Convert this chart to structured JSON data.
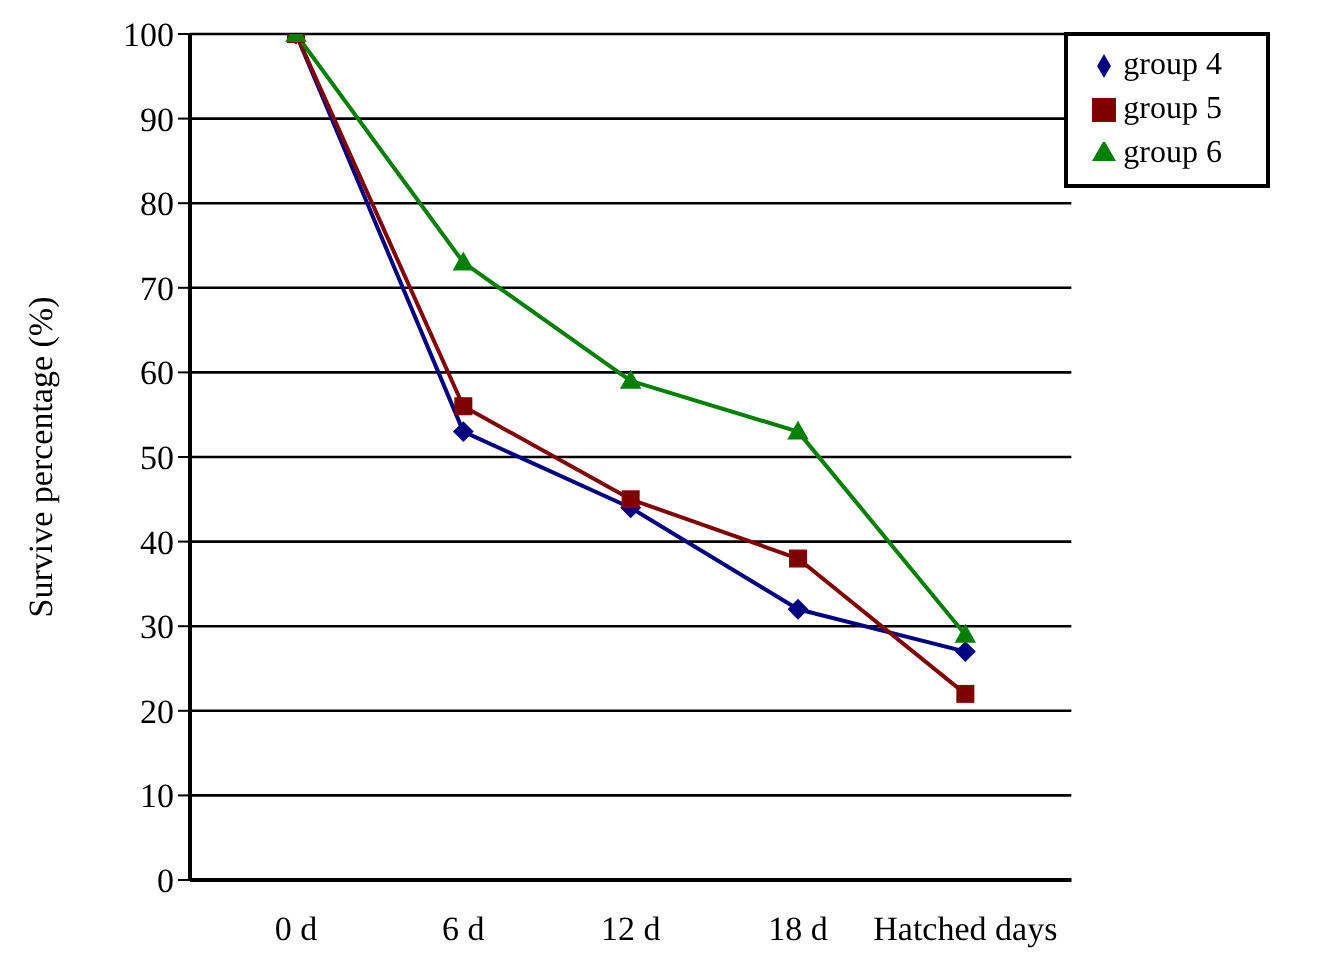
{
  "chart_data": {
    "type": "line",
    "ylabel": "Survive percentage (%)",
    "categories": [
      "0 d",
      "6 d",
      "12 d",
      "18 d",
      "Hatched days"
    ],
    "series": [
      {
        "name": "group 4",
        "color": "#000080",
        "marker": "diamond",
        "values": [
          100,
          53,
          44,
          32,
          27
        ]
      },
      {
        "name": "group 5",
        "color": "#800000",
        "marker": "square",
        "values": [
          100,
          56,
          45,
          38,
          22
        ]
      },
      {
        "name": "group 6",
        "color": "#008000",
        "marker": "triangle",
        "values": [
          100,
          73,
          59,
          53,
          29
        ]
      }
    ],
    "ylim": [
      0,
      100
    ],
    "yticks": [
      0,
      10,
      20,
      30,
      40,
      50,
      60,
      70,
      80,
      90,
      100
    ],
    "grid": "y",
    "legend": "top right"
  }
}
